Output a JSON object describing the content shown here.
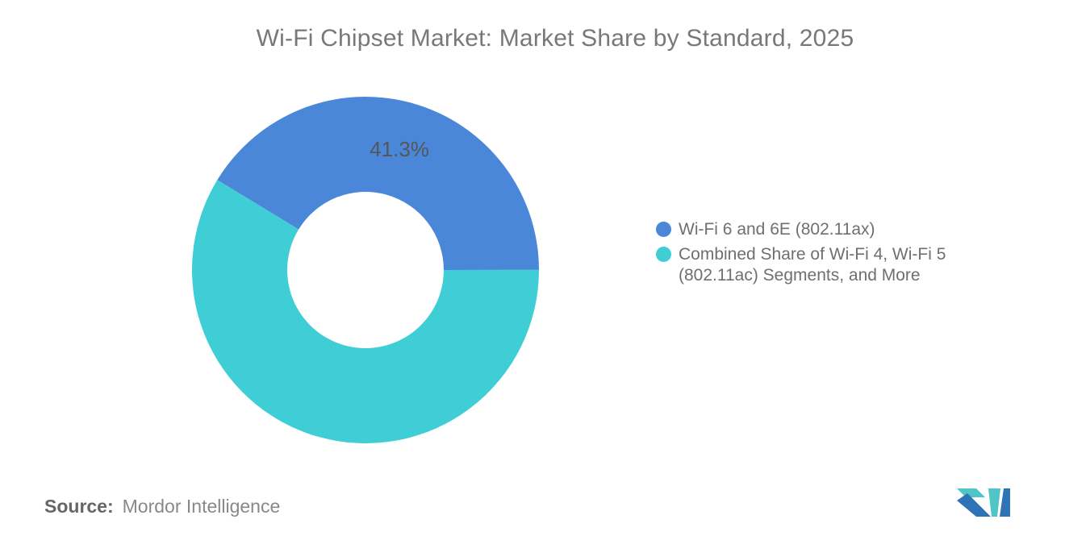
{
  "chart_data": {
    "type": "pie",
    "title": "Wi-Fi Chipset Market: Market Share by Standard, 2025",
    "donut": true,
    "inner_radius_ratio": 0.451,
    "rotation_deg": -58.7,
    "legend_position": "right",
    "data_label_color": "#55565a",
    "slices": [
      {
        "label": "Wi-Fi 6 and 6E (802.11ax)",
        "value": 41.3,
        "color": "#4A87D8",
        "data_label": "41.3%"
      },
      {
        "label": "Combined Share of Wi-Fi 4, Wi-Fi 5 (802.11ac) Segments, and More",
        "value": 58.7,
        "color": "#3FCED5",
        "data_label": ""
      }
    ]
  },
  "footer": {
    "source_label": "Source:",
    "source_value": "Mordor Intelligence"
  },
  "logo": {
    "name": "mordor-intelligence-logo",
    "colors": {
      "blue": "#2E73B6",
      "teal": "#4FC5C8"
    }
  }
}
